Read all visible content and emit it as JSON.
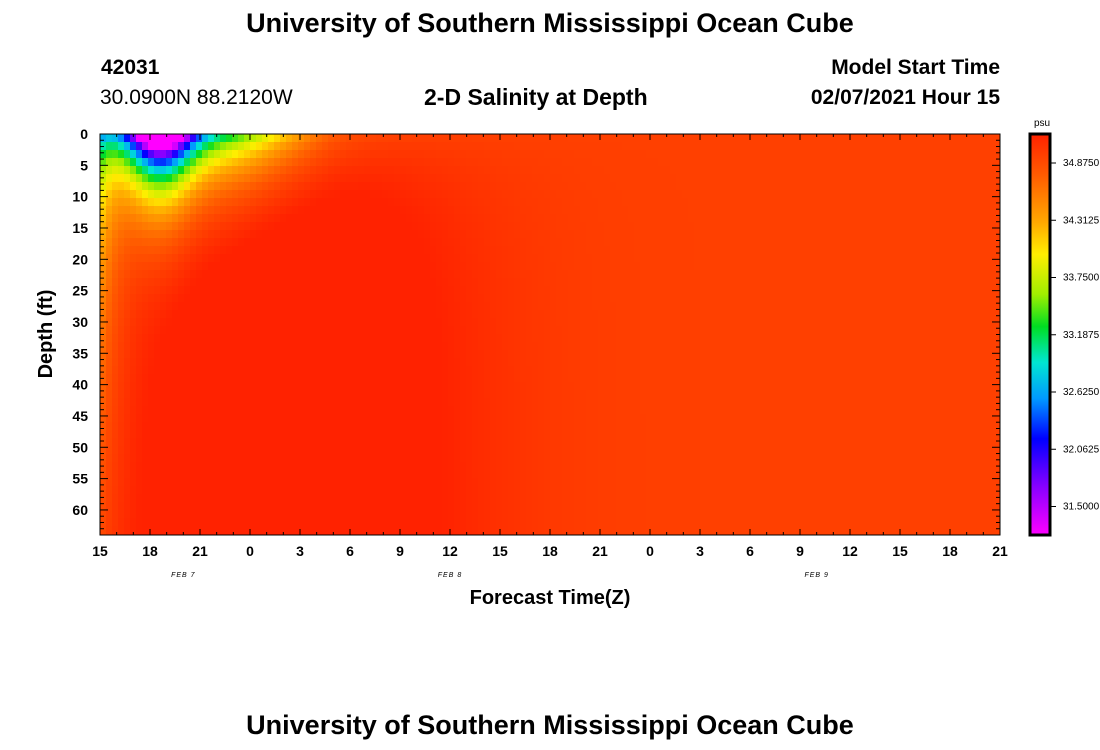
{
  "header": {
    "title": "University of Southern Mississippi Ocean Cube",
    "station_id": "42031",
    "location": "30.0900N 88.2120W",
    "plot_title": "2-D Salinity at Depth",
    "model_start_label": "Model Start Time",
    "model_start_value": "02/07/2021 Hour 15"
  },
  "footer": {
    "title": "University of Southern Mississippi Ocean Cube"
  },
  "chart_data": {
    "type": "heatmap",
    "title": "2-D Salinity at Depth",
    "xlabel": "Forecast Time(Z)",
    "ylabel": "Depth (ft)",
    "x_tick_labels": [
      "15",
      "18",
      "21",
      "0",
      "3",
      "6",
      "9",
      "12",
      "15",
      "18",
      "21",
      "0",
      "3",
      "6",
      "9",
      "12",
      "15",
      "18",
      "21"
    ],
    "date_labels": [
      {
        "text": "FEB 7",
        "hour_index": 5
      },
      {
        "text": "FEB 8",
        "hour_index": 21
      },
      {
        "text": "FEB 9",
        "hour_index": 43
      }
    ],
    "x_range_hours": [
      0,
      54
    ],
    "y_tick_labels": [
      "0",
      "5",
      "10",
      "15",
      "20",
      "25",
      "30",
      "35",
      "40",
      "45",
      "50",
      "55",
      "60"
    ],
    "ylim": [
      0,
      64
    ],
    "colorbar": {
      "unit": "psu",
      "tick_labels": [
        "34.8750",
        "34.3125",
        "33.7500",
        "33.1875",
        "32.6250",
        "32.0625",
        "31.5000"
      ],
      "min": 31.22,
      "max": 35.16
    }
  }
}
